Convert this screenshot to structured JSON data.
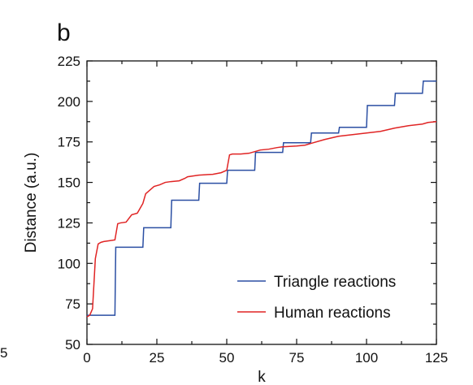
{
  "panel_label": "b",
  "clipped_left_label": "5",
  "chart_data": {
    "type": "line",
    "title": "",
    "xlabel": "k",
    "ylabel": "Distance (a.u.)",
    "xlim": [
      0,
      125
    ],
    "ylim": [
      50,
      225
    ],
    "xticks": [
      0,
      25,
      50,
      75,
      100,
      125
    ],
    "yticks": [
      50,
      75,
      100,
      125,
      150,
      175,
      200,
      225
    ],
    "legend_position": "lower-right",
    "grid": false,
    "series": [
      {
        "name": "Triangle reactions",
        "color": "#2b4fa3",
        "x": [
          0,
          10,
          10.3,
          20,
          20.3,
          30,
          30.3,
          40,
          40.3,
          50,
          50.3,
          60,
          60.3,
          70,
          70.3,
          80,
          80.3,
          90,
          90.3,
          100,
          100.3,
          110,
          110.3,
          120,
          120.3,
          125
        ],
        "y": [
          68,
          68,
          110,
          110,
          122,
          122,
          139,
          139,
          149.5,
          149.5,
          157.5,
          157.5,
          168.5,
          168.5,
          174.5,
          174.5,
          180.5,
          180.5,
          184,
          184,
          197.5,
          197.5,
          205,
          205,
          212.5,
          212.5
        ]
      },
      {
        "name": "Human reactions",
        "color": "#e02424",
        "x": [
          0,
          1,
          2,
          3,
          4,
          5,
          6,
          8,
          10,
          11,
          12,
          14,
          16,
          18,
          19,
          20,
          21,
          22,
          23,
          24,
          26,
          28,
          30,
          33,
          35,
          36,
          38,
          40,
          45,
          48,
          50,
          51,
          52,
          55,
          58,
          60,
          62,
          65,
          68,
          70,
          75,
          78,
          80,
          85,
          90,
          95,
          100,
          105,
          110,
          115,
          120,
          122,
          125
        ],
        "y": [
          67,
          68,
          72,
          103,
          112,
          113,
          113.5,
          114,
          114.5,
          124.5,
          125,
          125.5,
          130,
          131,
          134,
          137,
          143,
          144.5,
          146,
          147.5,
          148.5,
          150,
          150.5,
          151,
          152.5,
          153.5,
          154,
          154.5,
          155,
          156,
          157.5,
          167,
          167.5,
          167.5,
          168,
          169,
          170,
          170.5,
          171.5,
          172,
          172.5,
          173,
          174,
          176.5,
          178.5,
          179.5,
          180.5,
          181.5,
          183.5,
          185,
          186,
          187,
          187.5
        ]
      }
    ]
  }
}
